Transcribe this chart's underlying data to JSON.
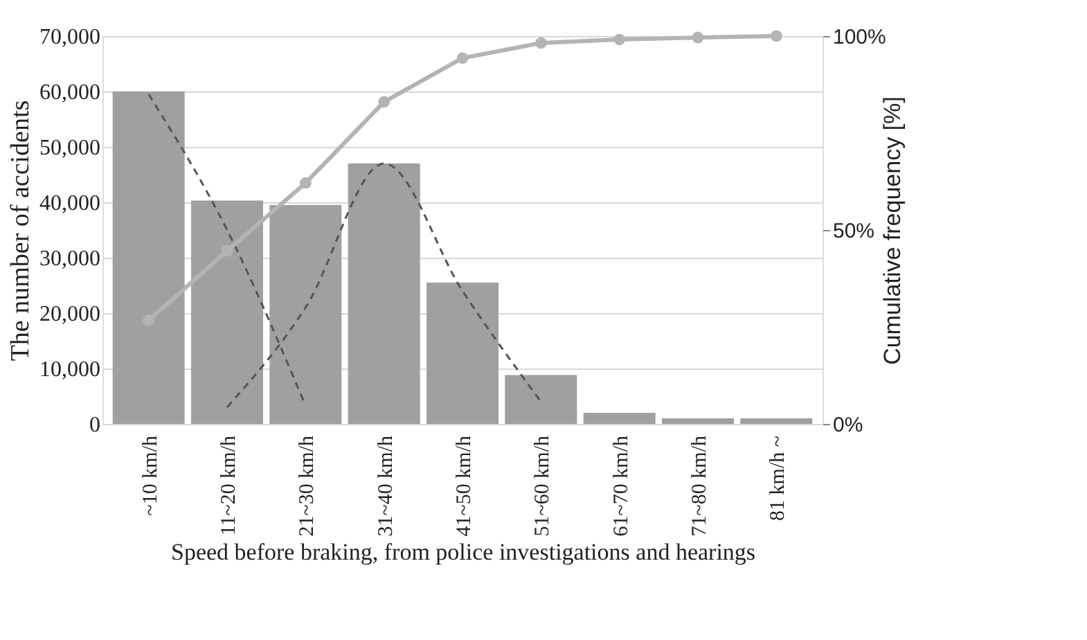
{
  "chart_data": {
    "type": "bar",
    "xlabel": "Speed before braking, from police investigations and hearings",
    "ylabel": "The number of accidents",
    "y2label": "Cumulative frequency [%]",
    "categories": [
      "~10 km/h",
      "11~20 km/h",
      "21~30 km/h",
      "31~40 km/h",
      "41~50 km/h",
      "51~60 km/h",
      "61~70 km/h",
      "71~80 km/h",
      "81 km/h ~"
    ],
    "series": [
      {
        "color": "#a0a0a0",
        "values": [
          60000,
          40300,
          39500,
          47000,
          25500,
          8800,
          2000,
          1000,
          1000
        ]
      },
      {
        "type": "line",
        "axis": "y2",
        "color": "#b4b4b4",
        "marker": "circle",
        "line_style": "solid",
        "values": [
          26.7,
          44.6,
          62.1,
          83.0,
          94.3,
          98.2,
          99.1,
          99.6,
          100
        ]
      },
      {
        "type": "line",
        "color": "#555555",
        "marker": "none",
        "line_style": "dashed",
        "values": [
          59500,
          35000,
          3300,
          null,
          null,
          null,
          null,
          null,
          null
        ]
      },
      {
        "type": "line",
        "color": "#555555",
        "marker": "none",
        "line_style": "dashed",
        "values": [
          null,
          3000,
          21000,
          47000,
          24000,
          4000,
          null,
          null,
          null
        ]
      }
    ],
    "ylim": [
      0,
      70000
    ],
    "yticks": [
      0,
      {
        "value": 10000,
        "label": "10,000"
      },
      {
        "value": 20000,
        "label": "20,000"
      },
      {
        "value": 30000,
        "label": "30,000"
      },
      {
        "value": 40000,
        "label": "40,000"
      },
      {
        "value": 50000,
        "label": "50,000"
      },
      {
        "value": 60000,
        "label": "60,000"
      },
      {
        "value": 70000,
        "label": "70,000"
      }
    ],
    "y2lim": [
      0,
      100
    ],
    "y2ticks": [
      {
        "value": 0,
        "label": "0%"
      },
      {
        "value": 50,
        "label": "50%"
      },
      {
        "value": 100,
        "label": "100%"
      }
    ],
    "grid": "y"
  }
}
